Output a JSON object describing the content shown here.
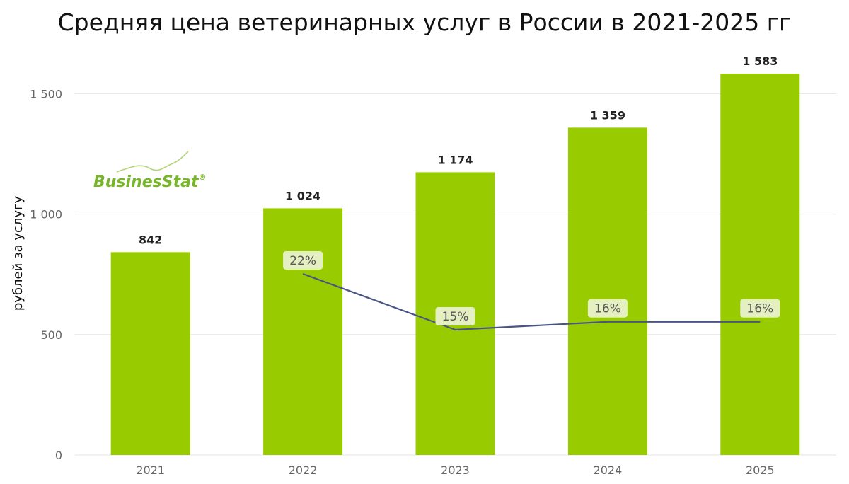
{
  "chart_data": {
    "type": "bar",
    "title": "Средняя цена ветеринарных услуг в России в 2021-2025 гг",
    "ylabel": "рублей за услугу",
    "xlabel": "",
    "categories": [
      "2021",
      "2022",
      "2023",
      "2024",
      "2025"
    ],
    "values": [
      842,
      1024,
      1174,
      1359,
      1583
    ],
    "value_labels": [
      "842",
      "1 024",
      "1 174",
      "1 359",
      "1 583"
    ],
    "ylim": [
      0,
      1700
    ],
    "yticks": [
      0,
      500,
      1000,
      1500
    ],
    "ytick_labels": [
      "0",
      "500",
      "1 000",
      "1 500"
    ],
    "grid": true,
    "growth_line": {
      "type": "line",
      "categories": [
        "2022",
        "2023",
        "2024",
        "2025"
      ],
      "values": [
        22,
        15,
        16,
        16
      ],
      "labels": [
        "22%",
        "15%",
        "16%",
        "16%"
      ]
    },
    "colors": {
      "bar": "#99cc00",
      "line": "#4a5584",
      "grid": "#e6e6e6",
      "pct_label_bg": "#e4efc2"
    }
  },
  "logo": {
    "text": "BusinesStat",
    "mark": "®",
    "color": "#77b52a"
  }
}
